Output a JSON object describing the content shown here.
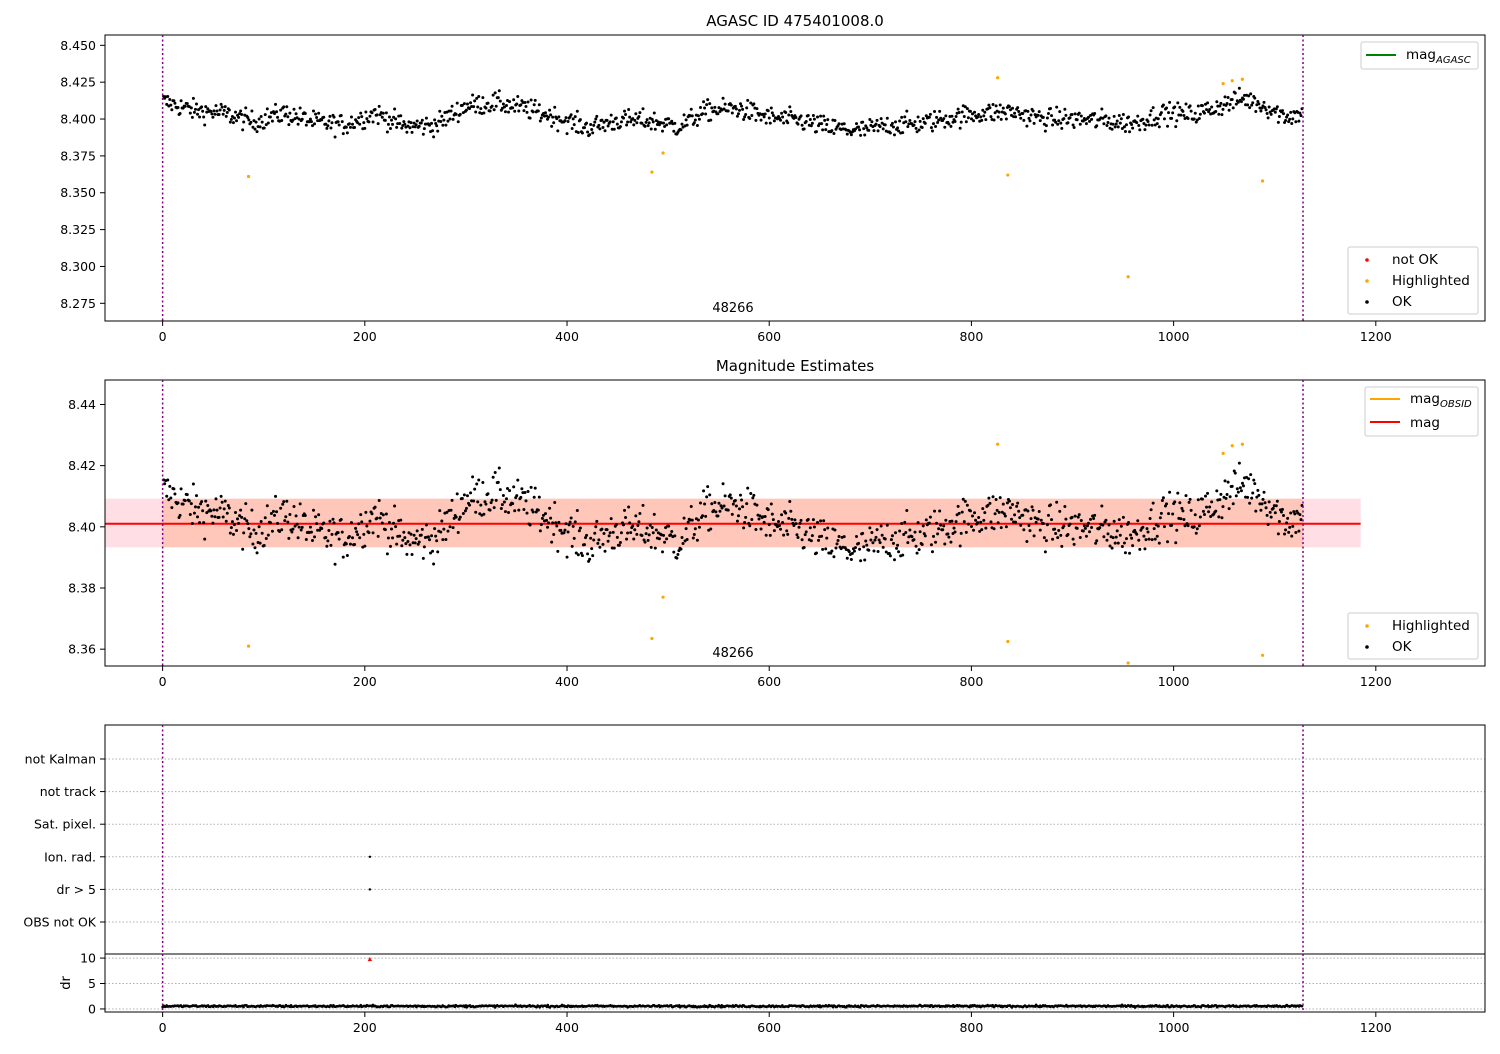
{
  "colors": {
    "ok": "#000000",
    "highlighted": "#ffa500",
    "not_ok": "#ff0000",
    "mag_agasc": "#008000",
    "mag_obsid": "#ffa500",
    "mag": "#ff0000",
    "obsid_line": "#800080",
    "band_outer": "#ffc0cb",
    "band_inner": "#ffa07a",
    "grid": "#b0b0b0"
  },
  "chart_data": [
    {
      "type": "scatter",
      "title": "AGASC ID 475401008.0",
      "xlim": [
        -57,
        1308
      ],
      "ylim": [
        8.263,
        8.457
      ],
      "xticks": [
        "0",
        "200",
        "400",
        "600",
        "800",
        "1000",
        "1200"
      ],
      "yticks": [
        "8.275",
        "8.300",
        "8.325",
        "8.350",
        "8.375",
        "8.400",
        "8.425",
        "8.450"
      ],
      "obsid_lines": [
        0,
        1128
      ],
      "obsid_label": "48266",
      "legend_lines": [
        {
          "name": "mag",
          "sub": "AGASC",
          "color_key": "mag_agasc"
        }
      ],
      "legend_points": [
        {
          "name": "not OK",
          "color_key": "not_ok"
        },
        {
          "name": "Highlighted",
          "color_key": "highlighted"
        },
        {
          "name": "OK",
          "color_key": "ok"
        }
      ],
      "series": [
        {
          "name": "OK",
          "color_key": "ok",
          "trend": [
            [
              0,
              8.412
            ],
            [
              30,
              8.406
            ],
            [
              60,
              8.404
            ],
            [
              90,
              8.398
            ],
            [
              120,
              8.404
            ],
            [
              150,
              8.398
            ],
            [
              180,
              8.396
            ],
            [
              210,
              8.404
            ],
            [
              240,
              8.395
            ],
            [
              270,
              8.396
            ],
            [
              300,
              8.409
            ],
            [
              330,
              8.411
            ],
            [
              360,
              8.407
            ],
            [
              390,
              8.401
            ],
            [
              420,
              8.394
            ],
            [
              450,
              8.399
            ],
            [
              480,
              8.399
            ],
            [
              510,
              8.395
            ],
            [
              540,
              8.406
            ],
            [
              570,
              8.407
            ],
            [
              600,
              8.401
            ],
            [
              630,
              8.399
            ],
            [
              660,
              8.394
            ],
            [
              690,
              8.392
            ],
            [
              720,
              8.396
            ],
            [
              750,
              8.397
            ],
            [
              780,
              8.401
            ],
            [
              810,
              8.404
            ],
            [
              840,
              8.405
            ],
            [
              870,
              8.4
            ],
            [
              900,
              8.4
            ],
            [
              930,
              8.399
            ],
            [
              960,
              8.397
            ],
            [
              990,
              8.404
            ],
            [
              1020,
              8.403
            ],
            [
              1050,
              8.41
            ],
            [
              1070,
              8.414
            ],
            [
              1090,
              8.409
            ],
            [
              1110,
              8.402
            ],
            [
              1128,
              8.403
            ]
          ],
          "count": 1110,
          "scatter": 0.011
        },
        {
          "name": "Highlighted",
          "color_key": "highlighted",
          "points": [
            [
              85,
              8.361
            ],
            [
              484,
              8.364
            ],
            [
              495,
              8.377
            ],
            [
              826,
              8.428
            ],
            [
              836,
              8.362
            ],
            [
              955,
              8.293
            ],
            [
              1049,
              8.424
            ],
            [
              1058,
              8.426
            ],
            [
              1068,
              8.427
            ],
            [
              1088,
              8.358
            ]
          ]
        }
      ]
    },
    {
      "type": "scatter",
      "title": "Magnitude Estimates",
      "xlim": [
        -57,
        1308
      ],
      "ylim": [
        8.3545,
        8.448
      ],
      "xticks": [
        "0",
        "200",
        "400",
        "600",
        "800",
        "1000",
        "1200"
      ],
      "yticks": [
        "8.36",
        "8.38",
        "8.40",
        "8.42",
        "8.44"
      ],
      "obsid_lines": [
        0,
        1128
      ],
      "obsid_label": "48266",
      "mag": 8.401,
      "band_outer": {
        "x": [
          -57,
          1185
        ],
        "y": [
          8.3933,
          8.4092
        ]
      },
      "band_inner": {
        "x": [
          0,
          1128
        ],
        "y": [
          8.3933,
          8.4092
        ]
      },
      "legend_lines": [
        {
          "name": "mag",
          "sub": "OBSID",
          "color_key": "mag_obsid"
        },
        {
          "name": "mag",
          "sub": "",
          "color_key": "mag"
        }
      ],
      "legend_points": [
        {
          "name": "Highlighted",
          "color_key": "highlighted"
        },
        {
          "name": "OK",
          "color_key": "ok"
        }
      ],
      "series": [
        {
          "name": "OK",
          "color_key": "ok",
          "reuse_from_panel": 0
        },
        {
          "name": "Highlighted",
          "color_key": "highlighted",
          "points": [
            [
              85,
              8.361
            ],
            [
              484,
              8.3635
            ],
            [
              495,
              8.377
            ],
            [
              826,
              8.427
            ],
            [
              836,
              8.3625
            ],
            [
              955,
              8.3555
            ],
            [
              1049,
              8.424
            ],
            [
              1058,
              8.4265
            ],
            [
              1068,
              8.427
            ],
            [
              1088,
              8.358
            ]
          ]
        }
      ]
    },
    {
      "type": "scatter",
      "title": "",
      "xlim": [
        -57,
        1308
      ],
      "categories": [
        "not Kalman",
        "not track",
        "Sat. pixel.",
        "Ion. rad.",
        "dr > 5",
        "OBS not OK"
      ],
      "flag_points": [
        {
          "category": "Ion. rad.",
          "x": 205
        },
        {
          "category": "dr > 5",
          "x": 205
        }
      ],
      "obsid_lines": [
        0,
        1128
      ]
    },
    {
      "type": "scatter",
      "title": "",
      "xlim": [
        -57,
        1308
      ],
      "ylim": [
        -0.6,
        10.8
      ],
      "ylabel": "dr",
      "xticks": [
        "0",
        "200",
        "400",
        "600",
        "800",
        "1000",
        "1200"
      ],
      "yticks": [
        "0",
        "5",
        "10"
      ],
      "obsid_lines": [
        0,
        1128
      ],
      "dr_mean": 0.55,
      "dr_scatter": 0.25,
      "outliers": [
        {
          "x": 205,
          "y": 9.8
        }
      ]
    }
  ]
}
